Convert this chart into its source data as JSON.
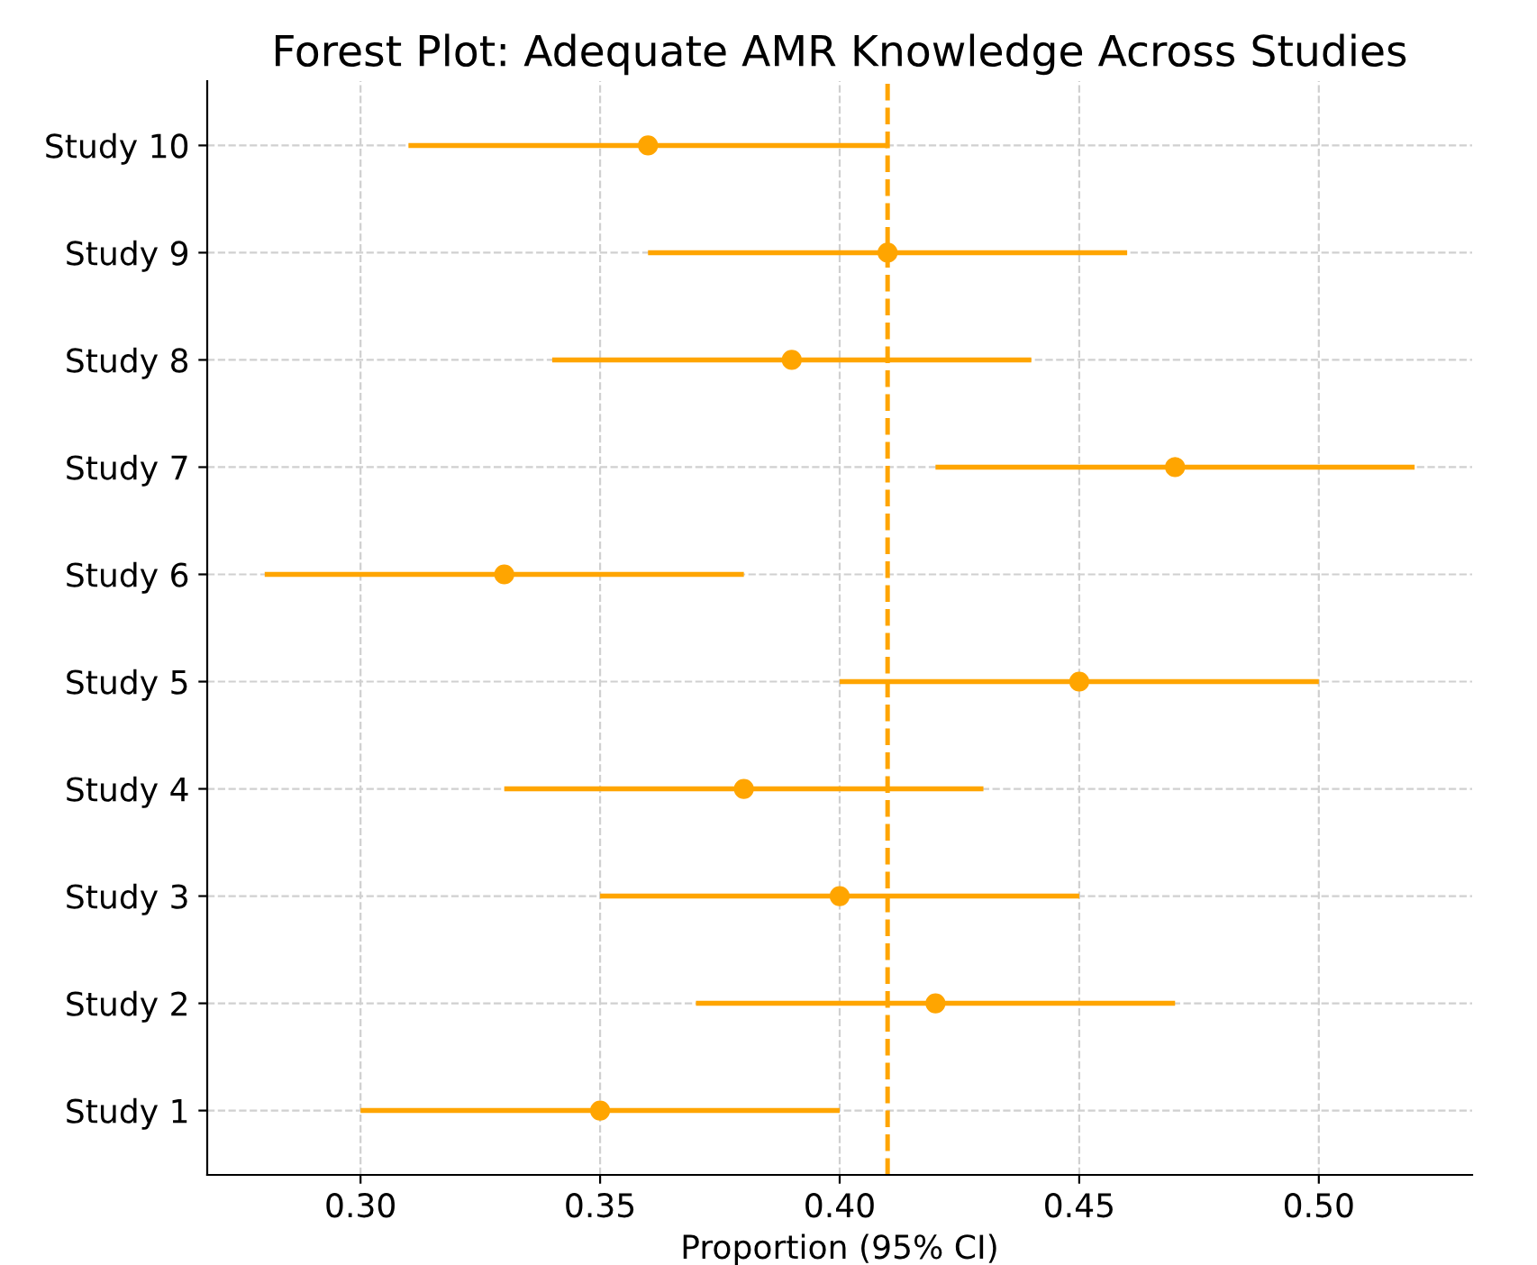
{
  "chart_data": {
    "type": "scatter",
    "orientation": "horizontal",
    "title": "Forest Plot: Adequate AMR Knowledge Across Studies",
    "xlabel": "Proportion (95% CI)",
    "categories": [
      "Study 10",
      "Study 9",
      "Study 8",
      "Study 7",
      "Study 6",
      "Study 5",
      "Study 4",
      "Study 3",
      "Study 2",
      "Study 1"
    ],
    "values": [
      0.36,
      0.41,
      0.39,
      0.47,
      0.33,
      0.45,
      0.38,
      0.4,
      0.42,
      0.35
    ],
    "errors": [
      0.05,
      0.05,
      0.05,
      0.05,
      0.05,
      0.05,
      0.05,
      0.05,
      0.05,
      0.05
    ],
    "color": "#ffa500",
    "marker": "circle",
    "xlim": [
      0.268,
      0.532
    ],
    "xticks": [
      {
        "value": 0.3,
        "label": "0.30"
      },
      {
        "value": 0.35,
        "label": "0.35"
      },
      {
        "value": 0.4,
        "label": "0.40"
      },
      {
        "value": 0.45,
        "label": "0.45"
      },
      {
        "value": 0.5,
        "label": "0.50"
      }
    ],
    "ref_lines": [
      {
        "axis": "x",
        "value": 0.41,
        "color": "#ffa500",
        "line_style": "dashed"
      }
    ],
    "grid": true
  }
}
